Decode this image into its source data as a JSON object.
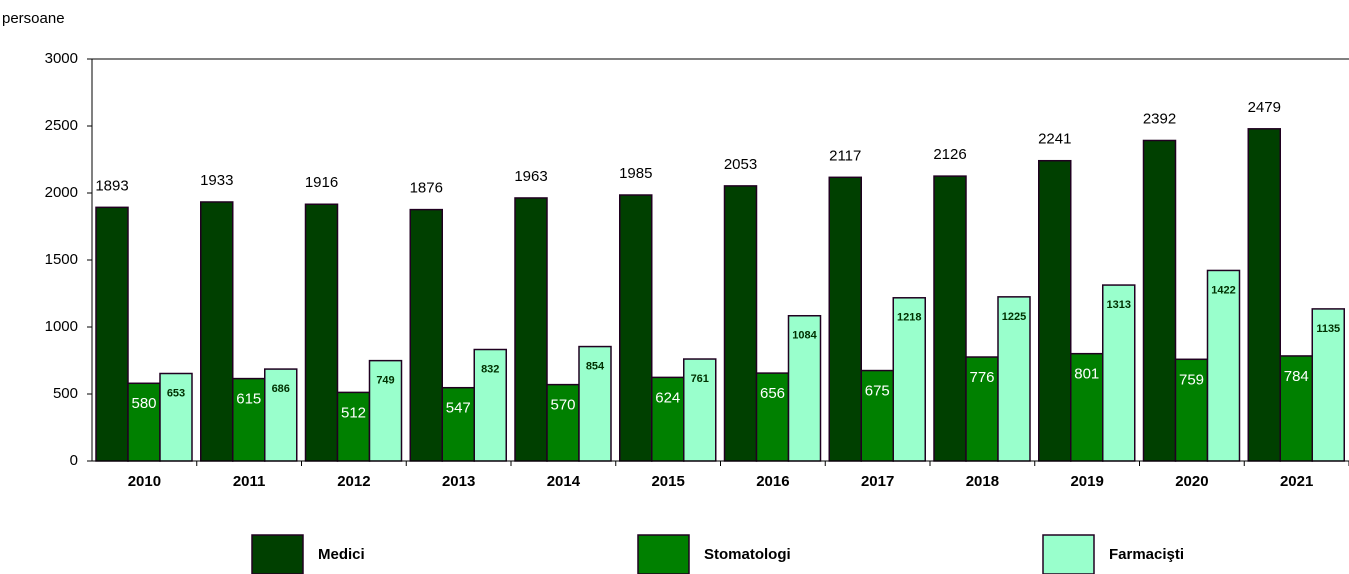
{
  "chart_data": {
    "type": "bar",
    "y_label": "persoane",
    "categories": [
      "2010",
      "2011",
      "2012",
      "2013",
      "2014",
      "2015",
      "2016",
      "2017",
      "2018",
      "2019",
      "2020",
      "2021"
    ],
    "series": [
      {
        "name": "Medici",
        "color": "#004000",
        "values": [
          1893,
          1933,
          1916,
          1876,
          1963,
          1985,
          2053,
          2117,
          2126,
          2241,
          2392,
          2479
        ]
      },
      {
        "name": "Stomatologi",
        "color": "#008000",
        "values": [
          580,
          615,
          512,
          547,
          570,
          624,
          656,
          675,
          776,
          801,
          759,
          784
        ]
      },
      {
        "name": "Farmacişti",
        "color": "#99ffcc",
        "values": [
          653,
          686,
          749,
          832,
          854,
          761,
          1084,
          1218,
          1225,
          1313,
          1422,
          1135
        ]
      }
    ],
    "ylim": [
      0,
      3000
    ],
    "yticks": [
      0,
      500,
      1000,
      1500,
      2000,
      2500,
      3000
    ],
    "grid": false,
    "legend": "bottom"
  }
}
